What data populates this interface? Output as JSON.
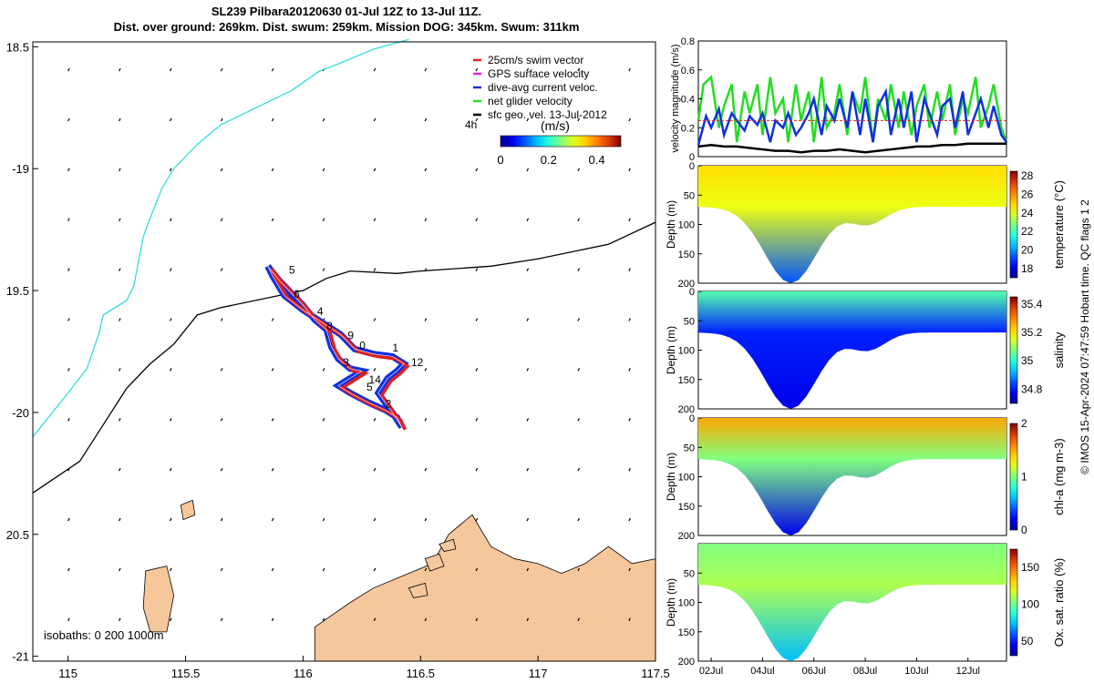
{
  "header": {
    "title_line1": "SL239 Pilbara20120630 01-Jul 12Z to 13-Jul 11Z.",
    "title_line2": "Dist. over ground: 269km. Dist. swum: 259km. Mission DOG: 345km. Swum: 311km"
  },
  "credit": "© IMOS 15-Apr-2024 07:47:59 Hobart time. QC flags 1  2",
  "chart_data": [
    {
      "type": "line",
      "name": "glider track map",
      "xlim": [
        114.85,
        117.5
      ],
      "ylim": [
        -21.02,
        -18.48
      ],
      "x_axis_note": "longitude (degrees E)",
      "y_axis_note": "latitude shown as positive magnitudes",
      "x_ticks": [
        115,
        115.5,
        116,
        116.5,
        117,
        117.5
      ],
      "x_tick_labels": [
        "115",
        "115.5",
        "116",
        "116.5",
        "117",
        "117.5"
      ],
      "y_ticks": [
        -18.5,
        -19,
        -19.5,
        -20,
        -20.5,
        -21
      ],
      "y_tick_labels": [
        "18.5",
        "-19",
        "19.5",
        "-20",
        "20.5",
        "-21"
      ],
      "legend": {
        "placement": "top-right",
        "entries": [
          {
            "label": "25cm/s swim vector",
            "color": "#e02020"
          },
          {
            "label": "GPS surface velocity",
            "color": "#e020e0"
          },
          {
            "label": "dive-avg current veloc.",
            "color": "#1030e0"
          },
          {
            "label": "net glider velocity",
            "color": "#22dd22"
          },
          {
            "label": "sfc geo. vel. 13-Jul-2012",
            "color": "#000000"
          }
        ],
        "note": "4h"
      },
      "colorbar": {
        "label": "(m/s)",
        "range": [
          0,
          0.5
        ],
        "tick_labels": [
          "0",
          "0.2",
          "0.4"
        ]
      },
      "isobaths_label": "isobaths: 0   200  1000m",
      "isobath_200m": [
        [
          117.5,
          -19.22
        ],
        [
          117.3,
          -19.31
        ],
        [
          117.0,
          -19.37
        ],
        [
          116.8,
          -19.4
        ],
        [
          116.5,
          -19.42
        ],
        [
          116.4,
          -19.43
        ],
        [
          116.2,
          -19.42
        ],
        [
          116.1,
          -19.45
        ],
        [
          116.0,
          -19.5
        ],
        [
          115.9,
          -19.52
        ],
        [
          115.65,
          -19.57
        ],
        [
          115.55,
          -19.6
        ],
        [
          115.45,
          -19.72
        ],
        [
          115.35,
          -19.8
        ],
        [
          115.25,
          -19.9
        ],
        [
          115.15,
          -20.05
        ],
        [
          115.05,
          -20.2
        ],
        [
          114.85,
          -20.33
        ]
      ],
      "isobath_1000m": [
        [
          116.45,
          -18.47
        ],
        [
          116.3,
          -18.51
        ],
        [
          116.15,
          -18.57
        ],
        [
          116.07,
          -18.6
        ],
        [
          115.95,
          -18.68
        ],
        [
          115.8,
          -18.75
        ],
        [
          115.65,
          -18.82
        ],
        [
          115.55,
          -18.9
        ],
        [
          115.45,
          -19.0
        ],
        [
          115.4,
          -19.08
        ],
        [
          115.35,
          -19.2
        ],
        [
          115.32,
          -19.28
        ],
        [
          115.3,
          -19.38
        ],
        [
          115.28,
          -19.48
        ],
        [
          115.25,
          -19.54
        ],
        [
          115.15,
          -19.6
        ],
        [
          115.13,
          -19.68
        ],
        [
          115.08,
          -19.82
        ],
        [
          115.0,
          -19.92
        ],
        [
          114.85,
          -20.1
        ]
      ],
      "glider_track": [
        [
          115.85,
          -19.4
        ],
        [
          115.9,
          -19.46
        ],
        [
          115.95,
          -19.51
        ],
        [
          116.0,
          -19.56
        ],
        [
          116.05,
          -19.62
        ],
        [
          116.1,
          -19.66
        ],
        [
          116.12,
          -19.73
        ],
        [
          116.15,
          -19.78
        ],
        [
          116.2,
          -19.82
        ],
        [
          116.25,
          -19.83
        ],
        [
          116.2,
          -19.86
        ],
        [
          116.15,
          -19.89
        ],
        [
          116.2,
          -19.92
        ],
        [
          116.28,
          -19.96
        ],
        [
          116.35,
          -19.99
        ],
        [
          116.4,
          -20.02
        ],
        [
          116.42,
          -20.06
        ],
        [
          116.38,
          -20.0
        ],
        [
          116.32,
          -19.92
        ],
        [
          116.36,
          -19.86
        ],
        [
          116.4,
          -19.83
        ],
        [
          116.43,
          -19.8
        ],
        [
          116.38,
          -19.77
        ],
        [
          116.3,
          -19.76
        ],
        [
          116.22,
          -19.74
        ],
        [
          116.16,
          -19.68
        ],
        [
          116.08,
          -19.63
        ],
        [
          116.0,
          -19.58
        ],
        [
          115.92,
          -19.52
        ],
        [
          115.87,
          -19.44
        ],
        [
          115.85,
          -19.4
        ]
      ],
      "day_labels": [
        {
          "text": "5",
          "x": 115.94,
          "y": -19.43
        },
        {
          "text": "6",
          "x": 115.96,
          "y": -19.53
        },
        {
          "text": "4",
          "x": 116.06,
          "y": -19.6
        },
        {
          "text": "8",
          "x": 116.1,
          "y": -19.66
        },
        {
          "text": "9",
          "x": 116.19,
          "y": -19.7
        },
        {
          "text": "0",
          "x": 116.24,
          "y": -19.74
        },
        {
          "text": "1",
          "x": 116.38,
          "y": -19.75
        },
        {
          "text": "12",
          "x": 116.46,
          "y": -19.81
        },
        {
          "text": "3",
          "x": 116.17,
          "y": -19.81
        },
        {
          "text": "14",
          "x": 116.28,
          "y": -19.88
        },
        {
          "text": "5",
          "x": 116.27,
          "y": -19.91
        },
        {
          "text": "2",
          "x": 116.35,
          "y": -19.98
        }
      ]
    },
    {
      "type": "line",
      "name": "velocity timeseries",
      "ylabel": "velocity magnitude (m/s)",
      "xlim": [
        1.5,
        13.5
      ],
      "ylim": [
        0,
        0.8
      ],
      "y_ticks": [
        0,
        0.2,
        0.4,
        0.6,
        0.8
      ],
      "y_tick_labels": [
        "0",
        "0.2",
        "0.4",
        "0.6",
        "0.8"
      ],
      "series": [
        {
          "color": "#22dd22",
          "x": [
            1.5,
            1.7,
            2.0,
            2.3,
            2.5,
            2.8,
            3.0,
            3.3,
            3.5,
            3.8,
            4.0,
            4.3,
            4.5,
            4.8,
            5.0,
            5.3,
            5.5,
            5.8,
            6.0,
            6.3,
            6.5,
            6.8,
            7.0,
            7.3,
            7.5,
            7.8,
            8.0,
            8.3,
            8.5,
            8.8,
            9.0,
            9.3,
            9.5,
            9.8,
            10.0,
            10.3,
            10.5,
            10.8,
            11.0,
            11.3,
            11.5,
            11.8,
            12.0,
            12.3,
            12.5,
            12.8,
            13.0,
            13.3,
            13.5
          ],
          "y": [
            0.25,
            0.5,
            0.55,
            0.2,
            0.35,
            0.5,
            0.1,
            0.45,
            0.3,
            0.5,
            0.15,
            0.55,
            0.3,
            0.4,
            0.1,
            0.5,
            0.25,
            0.45,
            0.1,
            0.55,
            0.2,
            0.3,
            0.5,
            0.15,
            0.45,
            0.3,
            0.55,
            0.1,
            0.4,
            0.25,
            0.5,
            0.2,
            0.45,
            0.15,
            0.35,
            0.5,
            0.2,
            0.45,
            0.25,
            0.5,
            0.15,
            0.4,
            0.3,
            0.55,
            0.2,
            0.35,
            0.5,
            0.2,
            0.1
          ]
        },
        {
          "color": "#1030e0",
          "x": [
            1.5,
            1.8,
            2.0,
            2.3,
            2.5,
            2.8,
            3.0,
            3.3,
            3.5,
            3.8,
            4.0,
            4.3,
            4.5,
            4.8,
            5.0,
            5.3,
            5.5,
            5.8,
            6.0,
            6.3,
            6.5,
            6.8,
            7.0,
            7.3,
            7.5,
            7.8,
            8.0,
            8.3,
            8.5,
            8.8,
            9.0,
            9.3,
            9.5,
            9.8,
            10.0,
            10.3,
            10.5,
            10.8,
            11.0,
            11.3,
            11.5,
            11.8,
            12.0,
            12.3,
            12.5,
            12.8,
            13.0,
            13.3,
            13.5
          ],
          "y": [
            0.08,
            0.28,
            0.2,
            0.33,
            0.15,
            0.3,
            0.25,
            0.18,
            0.28,
            0.22,
            0.3,
            0.1,
            0.25,
            0.2,
            0.3,
            0.15,
            0.2,
            0.3,
            0.4,
            0.15,
            0.35,
            0.25,
            0.4,
            0.2,
            0.45,
            0.15,
            0.4,
            0.1,
            0.35,
            0.45,
            0.15,
            0.4,
            0.2,
            0.45,
            0.1,
            0.4,
            0.3,
            0.15,
            0.35,
            0.4,
            0.2,
            0.45,
            0.15,
            0.3,
            0.4,
            0.2,
            0.35,
            0.15,
            0.1
          ]
        },
        {
          "color": "#000000",
          "x": [
            1.5,
            2.0,
            2.5,
            3.0,
            3.5,
            4.0,
            4.5,
            5.0,
            5.5,
            6.0,
            6.5,
            7.0,
            7.5,
            8.0,
            8.5,
            9.0,
            9.5,
            10.0,
            10.5,
            11.0,
            11.5,
            12.0,
            12.5,
            13.0,
            13.5
          ],
          "y": [
            0.07,
            0.08,
            0.07,
            0.07,
            0.06,
            0.05,
            0.04,
            0.04,
            0.03,
            0.04,
            0.04,
            0.05,
            0.04,
            0.03,
            0.04,
            0.05,
            0.06,
            0.07,
            0.07,
            0.08,
            0.08,
            0.09,
            0.09,
            0.09,
            0.09
          ]
        },
        {
          "color": "#e02020",
          "x": [
            1.5,
            13.5
          ],
          "y": [
            0.25,
            0.25
          ]
        }
      ]
    },
    {
      "type": "heatmap",
      "name": "temperature section",
      "ylabel": "Depth (m)",
      "colorbar_label": "temperature (°C)",
      "ylim": [
        200,
        0
      ],
      "y_ticks": [
        0,
        50,
        100,
        150,
        200
      ],
      "y_tick_labels": [
        "0",
        "50",
        "100",
        "150",
        "200"
      ],
      "colorbar_ticks": [
        "28",
        "26",
        "24",
        "22",
        "20",
        "18"
      ],
      "colorbar_range": [
        17,
        28.5
      ]
    },
    {
      "type": "heatmap",
      "name": "salinity section",
      "ylabel": "Depth (m)",
      "colorbar_label": "salinity",
      "ylim": [
        200,
        0
      ],
      "y_ticks": [
        0,
        50,
        100,
        150,
        200
      ],
      "y_tick_labels": [
        "0",
        "50",
        "100",
        "150",
        "200"
      ],
      "colorbar_ticks": [
        "35.4",
        "35.2",
        "35",
        "34.8"
      ],
      "colorbar_range": [
        34.7,
        35.45
      ]
    },
    {
      "type": "heatmap",
      "name": "chlorophyll section",
      "ylabel": "Depth (m)",
      "colorbar_label": "chl-a (mg m-3)",
      "ylim": [
        200,
        0
      ],
      "y_ticks": [
        0,
        50,
        100,
        150,
        200
      ],
      "y_tick_labels": [
        "0",
        "50",
        "100",
        "150",
        "200"
      ],
      "colorbar_ticks": [
        "2",
        "1",
        "0"
      ],
      "colorbar_range": [
        0,
        2
      ]
    },
    {
      "type": "heatmap",
      "name": "oxygen section",
      "ylabel": "Depth (m)",
      "colorbar_label": "Ox. sat. ratio (%)",
      "ylim": [
        200,
        0
      ],
      "y_ticks": [
        50,
        100,
        150,
        200
      ],
      "y_tick_labels": [
        "50",
        "100",
        "150",
        "200"
      ],
      "colorbar_ticks": [
        "150",
        "100",
        "50"
      ],
      "colorbar_range": [
        30,
        175
      ],
      "x_tick_labels": [
        "02Jul",
        "04Jul",
        "06Jul",
        "08Jul",
        "10Jul",
        "12Jul"
      ]
    }
  ]
}
